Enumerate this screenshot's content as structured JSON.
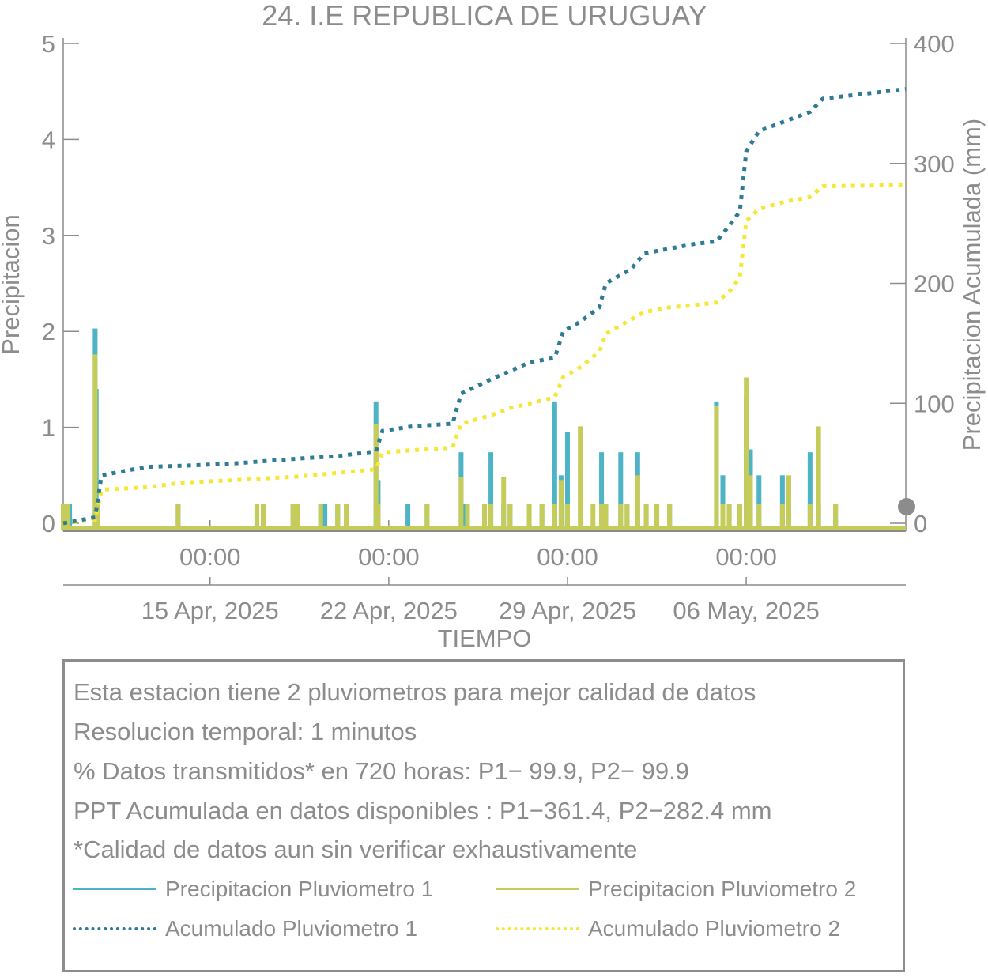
{
  "colors": {
    "p1_bar": "#4db3c5",
    "p2_bar": "#c6cc5a",
    "acc1": "#2e7b93",
    "acc2": "#f5e736",
    "axis": "#8c8c8c",
    "text": "#8c8c8c"
  },
  "chart_data": {
    "type": "bar+line",
    "title": "24. I.E REPUBLICA DE URUGUAY",
    "xlabel": "TIEMPO",
    "ylabel_left": "Precipitacion",
    "ylabel_right": "Precipitacion Acumulada (mm)",
    "ylim_left": [
      0,
      5
    ],
    "ylim_right": [
      0,
      400
    ],
    "yticks_left": [
      "0",
      "1",
      "2",
      "3",
      "4",
      "5"
    ],
    "yticks_right": [
      "0",
      "100",
      "200",
      "300",
      "400"
    ],
    "xlim": [
      "2025-04-09 06:00",
      "2025-05-12 06:00"
    ],
    "xticks": [
      {
        "time": "00:00",
        "date": "15 Apr, 2025",
        "at": "2025-04-15 00:00"
      },
      {
        "time": "00:00",
        "date": "22 Apr, 2025",
        "at": "2025-04-22 00:00"
      },
      {
        "time": "00:00",
        "date": "29 Apr, 2025",
        "at": "2025-04-29 00:00"
      },
      {
        "time": "00:00",
        "date": "06 May, 2025",
        "at": "2025-05-06 00:00"
      }
    ],
    "series": [
      {
        "name": "Precipitacion Pluviometro 1",
        "kind": "bar",
        "axis": "left",
        "x": [
          "2025-04-09 06:00",
          "2025-04-09 12:00",
          "2025-04-10 12:00",
          "2025-04-10 13:00",
          "2025-04-10 14:00",
          "2025-04-13 18:00",
          "2025-04-16 20:00",
          "2025-04-17 02:00",
          "2025-04-18 06:00",
          "2025-04-18 10:00",
          "2025-04-19 08:00",
          "2025-04-19 12:00",
          "2025-04-20 00:00",
          "2025-04-20 08:00",
          "2025-04-21 12:00",
          "2025-04-21 14:00",
          "2025-04-22 18:00",
          "2025-04-23 12:00",
          "2025-04-24 20:00",
          "2025-04-25 00:00",
          "2025-04-25 02:00",
          "2025-04-25 18:00",
          "2025-04-26 00:00",
          "2025-04-26 12:00",
          "2025-04-26 18:00",
          "2025-04-27 12:00",
          "2025-04-28 00:00",
          "2025-04-28 12:00",
          "2025-04-28 18:00",
          "2025-04-28 19:00",
          "2025-04-29 00:00",
          "2025-04-30 08:00",
          "2025-04-30 12:00",
          "2025-05-01 02:00",
          "2025-05-01 08:00",
          "2025-05-01 18:00",
          "2025-05-02 02:00",
          "2025-05-02 12:00",
          "2025-05-03 00:00",
          "2025-05-04 20:00",
          "2025-05-05 02:00",
          "2025-05-05 08:00",
          "2025-05-05 18:00",
          "2025-05-06 00:00",
          "2025-05-06 04:00",
          "2025-05-06 12:00",
          "2025-05-07 10:00",
          "2025-05-07 16:00",
          "2025-05-08 12:00",
          "2025-05-08 20:00",
          "2025-05-09 12:00"
        ],
        "values": [
          0.2,
          0.2,
          2.03,
          1.4,
          0.2,
          0.2,
          0.2,
          0.2,
          0.2,
          0.2,
          0.2,
          0.2,
          0.2,
          0.2,
          1.27,
          0.45,
          0.2,
          0.2,
          0.74,
          0.2,
          0.2,
          0.2,
          0.74,
          0.2,
          0.2,
          0.2,
          0.2,
          1.27,
          0.5,
          0.2,
          0.95,
          0.74,
          0.2,
          0.74,
          0.2,
          0.74,
          0.2,
          0.2,
          0.2,
          1.27,
          0.5,
          0.2,
          0.2,
          1.3,
          0.77,
          0.5,
          0.5,
          0.2,
          0.74,
          0.2,
          0.2
        ]
      },
      {
        "name": "Precipitacion Pluviometro 2",
        "kind": "bar",
        "axis": "left",
        "x": [
          "2025-04-09 06:00",
          "2025-04-09 10:00",
          "2025-04-10 12:00",
          "2025-04-10 14:00",
          "2025-04-13 18:00",
          "2025-04-16 20:00",
          "2025-04-17 02:00",
          "2025-04-18 06:00",
          "2025-04-18 10:00",
          "2025-04-19 08:00",
          "2025-04-20 00:00",
          "2025-04-20 08:00",
          "2025-04-21 12:00",
          "2025-04-21 14:00",
          "2025-04-23 12:00",
          "2025-04-24 20:00",
          "2025-04-25 02:00",
          "2025-04-25 18:00",
          "2025-04-26 00:00",
          "2025-04-26 12:00",
          "2025-04-26 18:00",
          "2025-04-27 12:00",
          "2025-04-28 00:00",
          "2025-04-28 12:00",
          "2025-04-28 18:00",
          "2025-04-29 00:00",
          "2025-04-29 12:00",
          "2025-04-30 00:00",
          "2025-04-30 08:00",
          "2025-04-30 12:00",
          "2025-05-01 02:00",
          "2025-05-01 08:00",
          "2025-05-01 18:00",
          "2025-05-02 02:00",
          "2025-05-02 12:00",
          "2025-05-03 00:00",
          "2025-05-04 20:00",
          "2025-05-05 02:00",
          "2025-05-05 08:00",
          "2025-05-05 18:00",
          "2025-05-06 00:00",
          "2025-05-06 04:00",
          "2025-05-06 12:00",
          "2025-05-07 10:00",
          "2025-05-07 16:00",
          "2025-05-08 12:00",
          "2025-05-08 20:00",
          "2025-05-09 12:00"
        ],
        "values": [
          0.2,
          0.2,
          1.76,
          0.2,
          0.2,
          0.2,
          0.2,
          0.2,
          0.2,
          0.2,
          0.2,
          0.2,
          1.03,
          0.2,
          0.2,
          0.48,
          0.2,
          0.2,
          0.2,
          0.48,
          0.2,
          0.2,
          0.2,
          0.2,
          0.45,
          0.2,
          1.01,
          0.2,
          0.2,
          0.2,
          0.2,
          0.2,
          0.5,
          0.2,
          0.2,
          0.2,
          1.22,
          0.2,
          0.2,
          0.2,
          1.52,
          0.5,
          0.2,
          0.2,
          0.5,
          0.2,
          1.01,
          0.2
        ]
      },
      {
        "name": "Acumulado Pluviometro 1",
        "kind": "line",
        "axis": "right",
        "x": [
          "2025-04-09 06:00",
          "2025-04-10 12:00",
          "2025-04-10 18:00",
          "2025-04-12 12:00",
          "2025-04-14 00:00",
          "2025-04-16 00:00",
          "2025-04-18 12:00",
          "2025-04-20 00:00",
          "2025-04-21 12:00",
          "2025-04-21 18:00",
          "2025-04-23 00:00",
          "2025-04-24 12:00",
          "2025-04-24 20:00",
          "2025-04-26 00:00",
          "2025-04-26 18:00",
          "2025-04-27 12:00",
          "2025-04-28 12:00",
          "2025-04-28 20:00",
          "2025-04-29 12:00",
          "2025-04-30 06:00",
          "2025-04-30 12:00",
          "2025-05-01 12:00",
          "2025-05-02 00:00",
          "2025-05-03 00:00",
          "2025-05-04 00:00",
          "2025-05-04 20:00",
          "2025-05-05 08:00",
          "2025-05-05 18:00",
          "2025-05-06 00:00",
          "2025-05-06 12:00",
          "2025-05-07 12:00",
          "2025-05-08 12:00",
          "2025-05-09 00:00",
          "2025-05-12 06:00"
        ],
        "values": [
          0,
          5,
          40,
          47,
          48,
          50,
          54,
          56,
          60,
          77,
          81,
          83,
          108,
          120,
          127,
          134,
          138,
          160,
          168,
          180,
          200,
          212,
          225,
          229,
          233,
          235,
          248,
          260,
          310,
          327,
          335,
          343,
          354,
          362
        ]
      },
      {
        "name": "Acumulado Pluviometro 2",
        "kind": "line",
        "axis": "right",
        "x": [
          "2025-04-09 06:00",
          "2025-04-10 12:00",
          "2025-04-10 18:00",
          "2025-04-12 12:00",
          "2025-04-14 00:00",
          "2025-04-16 00:00",
          "2025-04-18 12:00",
          "2025-04-20 00:00",
          "2025-04-21 12:00",
          "2025-04-21 18:00",
          "2025-04-23 00:00",
          "2025-04-24 12:00",
          "2025-04-24 20:00",
          "2025-04-26 00:00",
          "2025-04-26 18:00",
          "2025-04-28 12:00",
          "2025-04-28 20:00",
          "2025-04-29 12:00",
          "2025-04-30 06:00",
          "2025-04-30 12:00",
          "2025-05-01 12:00",
          "2025-05-02 00:00",
          "2025-05-03 00:00",
          "2025-05-04 00:00",
          "2025-05-04 20:00",
          "2025-05-05 08:00",
          "2025-05-05 18:00",
          "2025-05-06 00:00",
          "2025-05-06 12:00",
          "2025-05-07 12:00",
          "2025-05-08 12:00",
          "2025-05-09 00:00",
          "2025-05-12 06:00"
        ],
        "values": [
          0,
          3,
          28,
          30,
          34,
          36,
          39,
          42,
          45,
          59,
          61,
          63,
          83,
          90,
          96,
          105,
          122,
          130,
          143,
          158,
          170,
          176,
          180,
          182,
          184,
          193,
          205,
          252,
          262,
          268,
          272,
          281,
          282
        ]
      }
    ]
  },
  "info": {
    "lines": [
      "Esta estacion tiene 2 pluviometros para mejor calidad de datos",
      "Resolucion temporal: 1 minutos",
      "% Datos transmitidos* en 720 horas: P1− 99.9, P2− 99.9",
      "PPT Acumulada en datos disponibles : P1−361.4, P2−282.4 mm",
      "*Calidad de datos aun sin verificar exhaustivamente"
    ]
  },
  "legend": {
    "items": [
      {
        "label": "Precipitacion Pluviometro 1",
        "style": "solid",
        "color": "#4db3c5"
      },
      {
        "label": "Precipitacion Pluviometro 2",
        "style": "solid",
        "color": "#c6cc5a"
      },
      {
        "label": "Acumulado Pluviometro 1",
        "style": "dotted",
        "color": "#2e7b93"
      },
      {
        "label": "Acumulado Pluviometro 2",
        "style": "dotted",
        "color": "#f5e736"
      }
    ]
  }
}
